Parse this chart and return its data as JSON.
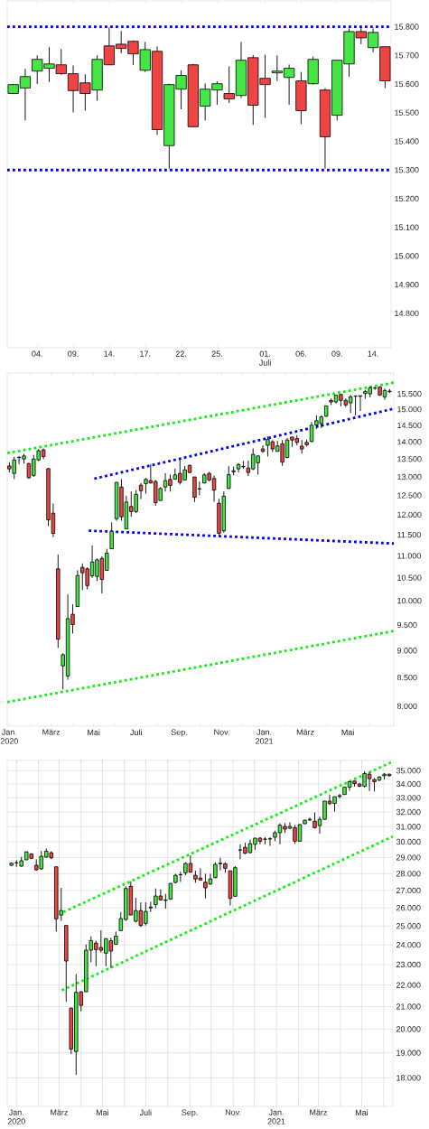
{
  "chart_data": [
    {
      "type": "candlestick",
      "categories": [
        null,
        null,
        "04.",
        null,
        null,
        "09.",
        null,
        null,
        "14.",
        null,
        null,
        "17.",
        null,
        null,
        "22.",
        null,
        null,
        "25.",
        null,
        null,
        null,
        "01. Juli",
        null,
        null,
        "06.",
        null,
        null,
        "09.",
        null,
        null,
        "14.",
        null
      ],
      "ohlc": [
        [
          15567,
          15600,
          15565,
          15598
        ],
        [
          15586,
          15653,
          15473,
          15626
        ],
        [
          15645,
          15700,
          15600,
          15686
        ],
        [
          15655,
          15728,
          15607,
          15670
        ],
        [
          15667,
          15722,
          15632,
          15636
        ],
        [
          15636,
          15665,
          15501,
          15577
        ],
        [
          15604,
          15634,
          15507,
          15567
        ],
        [
          15579,
          15700,
          15542,
          15686
        ],
        [
          15733,
          15797,
          15667,
          15667
        ],
        [
          15739,
          15785,
          15707,
          15724
        ],
        [
          15749,
          15752,
          15666,
          15705
        ],
        [
          15648,
          15747,
          15642,
          15720
        ],
        [
          15714,
          15731,
          15422,
          15441
        ],
        [
          15385,
          15601,
          15305,
          15598
        ],
        [
          15582,
          15648,
          15512,
          15630
        ],
        [
          15667,
          15670,
          15451,
          15451
        ],
        [
          15523,
          15602,
          15473,
          15582
        ],
        [
          15579,
          15609,
          15528,
          15601
        ],
        [
          15567,
          15662,
          15534,
          15548
        ],
        [
          15560,
          15747,
          15551,
          15683
        ],
        [
          15692,
          15701,
          15457,
          15526
        ],
        [
          15620,
          15702,
          15482,
          15598
        ],
        [
          15639,
          15700,
          15611,
          15645
        ],
        [
          15623,
          15668,
          15528,
          15655
        ],
        [
          15611,
          15642,
          15460,
          15507
        ],
        [
          15601,
          15696,
          15598,
          15686
        ],
        [
          15579,
          15586,
          15305,
          15416
        ],
        [
          15491,
          15683,
          15473,
          15683
        ],
        [
          15670,
          15794,
          15626,
          15783
        ],
        [
          15783,
          15799,
          15739,
          15761
        ],
        [
          15727,
          15794,
          15711,
          15780
        ],
        [
          15730,
          15730,
          15586,
          15611
        ]
      ],
      "colors": [
        "#44e544",
        "#44e544",
        "#44e544",
        "#44e544",
        "#ee4444",
        "#ee4444",
        "#ee4444",
        "#44e544",
        "#ee4444",
        "#ee4444",
        "#ee4444",
        "#44e544",
        "#ee4444",
        "#44e544",
        "#44e544",
        "#ee4444",
        "#44e544",
        "#44e544",
        "#ee4444",
        "#44e544",
        "#ee4444",
        "#ee4444",
        "#44e544",
        "#44e544",
        "#ee4444",
        "#44e544",
        "#ee4444",
        "#44e544",
        "#44e544",
        "#ee4444",
        "#44e544",
        "#ee4444"
      ],
      "ylim": [
        14680,
        15890
      ],
      "yticks": [
        {
          "value": 15800,
          "label": "15.800"
        },
        {
          "value": 15700,
          "label": "15.700"
        },
        {
          "value": 15600,
          "label": "15.600"
        },
        {
          "value": 15500,
          "label": "15.500"
        },
        {
          "value": 15400,
          "label": "15.400"
        },
        {
          "value": 15300,
          "label": "15.300"
        },
        {
          "value": 15200,
          "label": "15.200"
        },
        {
          "value": 15100,
          "label": "15.100"
        },
        {
          "value": 15000,
          "label": "15.000"
        },
        {
          "value": 14900,
          "label": "14.900"
        },
        {
          "value": 14800,
          "label": "14.800"
        }
      ],
      "ref_lines": [
        {
          "axis": "y",
          "value": 15800,
          "color": "#0000ee",
          "line_style": "dotted"
        },
        {
          "axis": "y",
          "value": 15300,
          "color": "#0000ee",
          "line_style": "dotted"
        }
      ]
    },
    {
      "type": "candlestick",
      "log": true,
      "x": [
        "2020-01-01",
        "2020-01-08",
        "2020-01-15",
        "2020-01-22",
        "2020-01-29",
        "2020-02-05",
        "2020-02-12",
        "2020-02-19",
        "2020-02-26",
        "2020-03-04",
        "2020-03-11",
        "2020-03-18",
        "2020-03-25",
        "2020-04-01",
        "2020-04-08",
        "2020-04-15",
        "2020-04-22",
        "2020-04-29",
        "2020-05-06",
        "2020-05-13",
        "2020-05-20",
        "2020-05-27",
        "2020-06-03",
        "2020-06-10",
        "2020-06-17",
        "2020-06-24",
        "2020-07-01",
        "2020-07-08",
        "2020-07-15",
        "2020-07-22",
        "2020-07-29",
        "2020-08-05",
        "2020-08-12",
        "2020-08-19",
        "2020-08-26",
        "2020-09-02",
        "2020-09-09",
        "2020-09-16",
        "2020-09-23",
        "2020-09-30",
        "2020-10-07",
        "2020-10-14",
        "2020-10-21",
        "2020-10-28",
        "2020-11-04",
        "2020-11-11",
        "2020-11-18",
        "2020-11-25",
        "2020-12-02",
        "2020-12-09",
        "2020-12-16",
        "2020-12-23",
        "2020-12-30",
        "2021-01-06",
        "2021-01-13",
        "2021-01-20",
        "2021-01-27",
        "2021-02-03",
        "2021-02-10",
        "2021-02-17",
        "2021-02-24",
        "2021-03-03",
        "2021-03-10",
        "2021-03-17",
        "2021-03-24",
        "2021-03-31",
        "2021-04-07",
        "2021-04-14",
        "2021-04-21",
        "2021-04-28",
        "2021-05-05",
        "2021-05-12",
        "2021-05-19",
        "2021-05-26",
        "2021-06-02",
        "2021-06-09",
        "2021-06-16",
        "2021-06-23",
        "2021-06-30"
      ],
      "ohlc": [
        [
          13303,
          13410,
          13122,
          13221
        ],
        [
          13096,
          13564,
          12939,
          13475
        ],
        [
          13540,
          13590,
          13352,
          13550
        ],
        [
          13502,
          13652,
          13369,
          13590
        ],
        [
          13369,
          13396,
          12957,
          12973
        ],
        [
          13039,
          13617,
          12998,
          13502
        ],
        [
          13475,
          13792,
          13440,
          13739
        ],
        [
          13766,
          13810,
          13502,
          13572
        ],
        [
          13229,
          13245,
          11717,
          11869
        ],
        [
          12039,
          12287,
          11441,
          11535
        ],
        [
          10700,
          11027,
          9050,
          9220
        ],
        [
          8713,
          8949,
          8290,
          8921
        ],
        [
          8529,
          10135,
          8460,
          9629
        ],
        [
          9719,
          9924,
          9329,
          9509
        ],
        [
          9879,
          10666,
          9870,
          10550
        ],
        [
          10734,
          10823,
          10231,
          10611
        ],
        [
          10700,
          10734,
          10244,
          10327
        ],
        [
          10543,
          11245,
          10495,
          10857
        ],
        [
          10529,
          10939,
          10427,
          10905
        ],
        [
          10939,
          10987,
          10154,
          10461
        ],
        [
          10666,
          11165,
          10660,
          11063
        ],
        [
          11165,
          11807,
          11160,
          11586
        ],
        [
          11900,
          12860,
          11846,
          12849
        ],
        [
          12725,
          12939,
          11846,
          11946
        ],
        [
          11644,
          12489,
          11640,
          12326
        ],
        [
          12210,
          12609,
          11946,
          12078
        ],
        [
          12078,
          12642,
          12039,
          12528
        ],
        [
          12774,
          12832,
          12403,
          12626
        ],
        [
          12816,
          12973,
          12543,
          12931
        ],
        [
          12898,
          13352,
          12820,
          12832
        ],
        [
          12874,
          12915,
          12233,
          12310
        ],
        [
          12365,
          12725,
          12360,
          12683
        ],
        [
          12725,
          13104,
          12601,
          12898
        ],
        [
          12931,
          13063,
          12601,
          12766
        ],
        [
          12939,
          13229,
          12915,
          13055
        ],
        [
          13096,
          13484,
          12791,
          12849
        ],
        [
          12915,
          13303,
          12910,
          13196
        ],
        [
          13319,
          13344,
          13104,
          13121
        ],
        [
          12998,
          13000,
          12326,
          12450
        ],
        [
          12670,
          12874,
          12504,
          12680
        ],
        [
          12832,
          13104,
          12830,
          13055
        ],
        [
          13096,
          13138,
          12874,
          12915
        ],
        [
          12956,
          13039,
          12334,
          12642
        ],
        [
          12295,
          12411,
          11477,
          11535
        ],
        [
          11597,
          12605,
          11550,
          12481
        ],
        [
          12683,
          13303,
          12680,
          13063
        ],
        [
          13140,
          13286,
          13039,
          13170
        ],
        [
          13221,
          13386,
          13121,
          13344
        ],
        [
          13280,
          13452,
          13221,
          13290
        ],
        [
          13245,
          13452,
          13022,
          13121
        ],
        [
          13221,
          13810,
          13188,
          13634
        ],
        [
          13394,
          13600,
          13063,
          13590
        ],
        [
          13792,
          13899,
          13677,
          13721
        ],
        [
          13899,
          14161,
          13572,
          14073
        ],
        [
          14003,
          14055,
          13704,
          13792
        ],
        [
          13721,
          14029,
          13715,
          13882
        ],
        [
          13943,
          14055,
          13307,
          13412
        ],
        [
          13546,
          14117,
          13520,
          14055
        ],
        [
          14143,
          14150,
          13855,
          14055
        ],
        [
          14099,
          14205,
          13899,
          13985
        ],
        [
          13873,
          14055,
          13660,
          13792
        ],
        [
          13985,
          14073,
          13855,
          13917
        ],
        [
          14011,
          14602,
          13985,
          14501
        ],
        [
          14510,
          14811,
          14390,
          14642
        ],
        [
          14548,
          14811,
          14418,
          14764
        ],
        [
          14783,
          15120,
          14764,
          15112
        ],
        [
          15285,
          15353,
          15140,
          15236
        ],
        [
          15236,
          15470,
          15187,
          15461
        ],
        [
          15480,
          15500,
          15093,
          15285
        ],
        [
          15285,
          15353,
          15074,
          15140
        ],
        [
          15206,
          15461,
          14883,
          15402
        ],
        [
          15420,
          15440,
          14811,
          15430
        ],
        [
          15420,
          15440,
          14950,
          15437
        ],
        [
          15510,
          15629,
          15333,
          15580
        ],
        [
          15500,
          15748,
          15383,
          15698
        ],
        [
          15690,
          15748,
          15629,
          15693
        ],
        [
          15727,
          15748,
          15431,
          15461
        ],
        [
          15402,
          15679,
          15304,
          15609
        ],
        [
          15570,
          15658,
          15530,
          15590
        ]
      ],
      "colors": [
        "#ee4444",
        "#44e544",
        "#44e544",
        "#44e544",
        "#ee4444",
        "#44e544",
        "#44e544",
        "#ee4444",
        "#ee4444",
        "#ee4444",
        "#ee4444",
        "#44e544",
        "#44e544",
        "#ee4444",
        "#44e544",
        "#ee4444",
        "#ee4444",
        "#44e544",
        "#44e544",
        "#ee4444",
        "#44e544",
        "#44e544",
        "#44e544",
        "#ee4444",
        "#44e544",
        "#ee4444",
        "#44e544",
        "#ee4444",
        "#44e544",
        "#ee4444",
        "#ee4444",
        "#44e544",
        "#44e544",
        "#ee4444",
        "#44e544",
        "#ee4444",
        "#44e544",
        "#ee4444",
        "#ee4444",
        "#44e544",
        "#44e544",
        "#ee4444",
        "#ee4444",
        "#ee4444",
        "#44e544",
        "#44e544",
        "#44e544",
        "#44e544",
        "#44e544",
        "#ee4444",
        "#44e544",
        "#44e544",
        "#ee4444",
        "#44e544",
        "#ee4444",
        "#44e544",
        "#ee4444",
        "#44e544",
        "#ee4444",
        "#ee4444",
        "#ee4444",
        "#ee4444",
        "#44e544",
        "#44e544",
        "#44e544",
        "#44e544",
        "#ee4444",
        "#44e544",
        "#ee4444",
        "#ee4444",
        "#44e544",
        "#44e544",
        "#44e544",
        "#44e544",
        "#44e544",
        "#44e544",
        "#ee4444",
        "#44e544",
        "#44e544"
      ],
      "xlim": [
        "2019-12-29",
        "2021-07-06"
      ],
      "xticks": [
        {
          "value": "2020-01-01",
          "label": "Jan. 2020"
        },
        {
          "value": "2020-02-01",
          "label": null
        },
        {
          "value": "2020-03-01",
          "label": "März"
        },
        {
          "value": "2020-04-01",
          "label": null
        },
        {
          "value": "2020-05-01",
          "label": "Mai"
        },
        {
          "value": "2020-06-01",
          "label": null
        },
        {
          "value": "2020-07-01",
          "label": "Juli"
        },
        {
          "value": "2020-08-01",
          "label": null
        },
        {
          "value": "2020-09-01",
          "label": "Sep."
        },
        {
          "value": "2020-10-01",
          "label": null
        },
        {
          "value": "2020-11-01",
          "label": "Nov."
        },
        {
          "value": "2020-12-01",
          "label": null
        },
        {
          "value": "2021-01-01",
          "label": "Jan. 2021"
        },
        {
          "value": "2021-02-01",
          "label": null
        },
        {
          "value": "2021-03-01",
          "label": "März"
        },
        {
          "value": "2021-04-01",
          "label": null
        },
        {
          "value": "2021-05-01",
          "label": "Mai"
        },
        {
          "value": "2021-06-01",
          "label": null
        },
        {
          "value": "2021-07-01",
          "label": null
        }
      ],
      "ylim": [
        7670,
        16200
      ],
      "yticks": [
        {
          "value": 15500,
          "label": "15.500"
        },
        {
          "value": 15000,
          "label": "15.000"
        },
        {
          "value": 14500,
          "label": "14.500"
        },
        {
          "value": 14000,
          "label": "14.000"
        },
        {
          "value": 13500,
          "label": "13.500"
        },
        {
          "value": 13000,
          "label": "13.000"
        },
        {
          "value": 12500,
          "label": "12.500"
        },
        {
          "value": 12000,
          "label": "12.000"
        },
        {
          "value": 11500,
          "label": "11.500"
        },
        {
          "value": 11000,
          "label": "11.000"
        },
        {
          "value": 10500,
          "label": "10.500"
        },
        {
          "value": 10000,
          "label": "10.000"
        },
        {
          "value": 9500,
          "label": "9.500"
        },
        {
          "value": 9000,
          "label": "9.000"
        },
        {
          "value": 8500,
          "label": "8.500"
        },
        {
          "value": 8000,
          "label": "8.000"
        }
      ],
      "series": [
        {
          "type": "line",
          "x": [
            "2019-12-29",
            "2021-07-06"
          ],
          "values": [
            13670,
            15870
          ],
          "color": "#11ee11",
          "line_style": "dotted"
        },
        {
          "type": "line",
          "x": [
            "2020-05-02",
            "2021-07-06"
          ],
          "values": [
            12950,
            15020
          ],
          "color": "#0000ee",
          "line_style": "dotted"
        },
        {
          "type": "line",
          "x": [
            "2020-04-24",
            "2021-07-06"
          ],
          "values": [
            11600,
            11290
          ],
          "color": "#0000ee",
          "line_style": "dotted"
        },
        {
          "type": "line",
          "x": [
            "2019-12-29",
            "2021-07-06"
          ],
          "values": [
            8070,
            9380
          ],
          "color": "#11ee11",
          "line_style": "dotted"
        }
      ]
    },
    {
      "type": "candlestick",
      "log": true,
      "grid": true,
      "x": [
        "2019-12-25",
        "2020-01-01",
        "2020-01-08",
        "2020-01-15",
        "2020-01-22",
        "2020-01-29",
        "2020-02-05",
        "2020-02-12",
        "2020-02-19",
        "2020-02-26",
        "2020-03-04",
        "2020-03-11",
        "2020-03-18",
        "2020-03-25",
        "2020-04-01",
        "2020-04-08",
        "2020-04-15",
        "2020-04-22",
        "2020-04-29",
        "2020-05-06",
        "2020-05-13",
        "2020-05-20",
        "2020-05-27",
        "2020-06-03",
        "2020-06-10",
        "2020-06-17",
        "2020-06-24",
        "2020-07-01",
        "2020-07-08",
        "2020-07-15",
        "2020-07-22",
        "2020-07-29",
        "2020-08-05",
        "2020-08-12",
        "2020-08-19",
        "2020-08-26",
        "2020-09-02",
        "2020-09-09",
        "2020-09-16",
        "2020-09-23",
        "2020-09-30",
        "2020-10-07",
        "2020-10-14",
        "2020-10-21",
        "2020-10-28",
        "2020-11-04",
        "2020-11-11",
        "2020-11-18",
        "2020-11-25",
        "2020-12-02",
        "2020-12-09",
        "2020-12-16",
        "2020-12-23",
        "2020-12-30",
        "2021-01-06",
        "2021-01-13",
        "2021-01-20",
        "2021-01-27",
        "2021-02-03",
        "2021-02-10",
        "2021-02-17",
        "2021-02-24",
        "2021-03-03",
        "2021-03-10",
        "2021-03-17",
        "2021-03-24",
        "2021-03-31",
        "2021-04-07",
        "2021-04-14",
        "2021-04-21",
        "2021-04-28",
        "2021-05-05",
        "2021-05-12",
        "2021-05-19",
        "2021-05-26",
        "2021-06-02",
        "2021-06-09"
      ],
      "ohlc": [
        [
          28514,
          28703,
          28460,
          28647
        ],
        [
          28660,
          28835,
          28422,
          28670
        ],
        [
          28460,
          29040,
          28422,
          28797
        ],
        [
          28853,
          29370,
          28840,
          29358
        ],
        [
          29227,
          29264,
          28928,
          28947
        ],
        [
          28516,
          28891,
          28180,
          28236
        ],
        [
          28292,
          29414,
          28236,
          29078
        ],
        [
          29021,
          29582,
          28984,
          29396
        ],
        [
          29302,
          29396,
          28891,
          28984
        ],
        [
          28423,
          28430,
          24702,
          25391
        ],
        [
          25604,
          27153,
          25276,
          25850
        ],
        [
          25030,
          25040,
          21217,
          23177
        ],
        [
          20933,
          20950,
          18945,
          19159
        ],
        [
          19058,
          22532,
          18117,
          21656
        ],
        [
          21684,
          21700,
          20785,
          21055
        ],
        [
          21684,
          24019,
          21680,
          23728
        ],
        [
          23728,
          24450,
          23116,
          24218
        ],
        [
          24095,
          24218,
          22914,
          23759
        ],
        [
          23866,
          24766,
          23605,
          23728
        ],
        [
          23575,
          24340,
          22914,
          24327
        ],
        [
          24218,
          24376,
          22837,
          23682
        ],
        [
          24030,
          24702,
          24020,
          24458
        ],
        [
          24751,
          25768,
          24740,
          25407
        ],
        [
          25358,
          27241,
          25276,
          27118
        ],
        [
          27241,
          27546,
          25600,
          25604
        ],
        [
          25260,
          26575,
          25194,
          25850
        ],
        [
          25850,
          26313,
          24948,
          25030
        ],
        [
          25145,
          26313,
          25030,
          25801
        ],
        [
          26000,
          26348,
          25768,
          26050
        ],
        [
          26186,
          27118,
          25983,
          26680
        ],
        [
          26680,
          27066,
          26418,
          26453
        ],
        [
          26453,
          26803,
          25966,
          26428
        ],
        [
          26505,
          27430,
          26453,
          27418
        ],
        [
          27471,
          27993,
          27418,
          27902
        ],
        [
          27935,
          28124,
          27506,
          27945
        ],
        [
          28050,
          28703,
          27902,
          28628
        ],
        [
          28628,
          29134,
          28050,
          28105
        ],
        [
          27902,
          28180,
          27453,
          27678
        ],
        [
          27734,
          28329,
          27585,
          27622
        ],
        [
          27488,
          27993,
          26540,
          27153
        ],
        [
          27383,
          27993,
          27331,
          27678
        ],
        [
          27769,
          28703,
          27716,
          28572
        ],
        [
          28640,
          28984,
          28199,
          28606
        ],
        [
          28610,
          28703,
          28050,
          28329
        ],
        [
          28180,
          28190,
          26138,
          26540
        ],
        [
          26663,
          28460,
          26650,
          28367
        ],
        [
          29470,
          29843,
          28891,
          29480
        ],
        [
          29645,
          29942,
          29208,
          29265
        ],
        [
          29302,
          30141,
          29265,
          29883
        ],
        [
          29843,
          30250,
          29489,
          30241
        ],
        [
          30241,
          30300,
          29843,
          30042
        ],
        [
          30160,
          30300,
          29843,
          30180
        ],
        [
          30180,
          30300,
          29744,
          30199
        ],
        [
          30300,
          30738,
          30042,
          30599
        ],
        [
          30599,
          31235,
          29843,
          31096
        ],
        [
          31016,
          31235,
          30579,
          30837
        ],
        [
          30897,
          31295,
          30837,
          31016
        ],
        [
          30936,
          31096,
          29883,
          30042
        ],
        [
          30042,
          31175,
          30030,
          31136
        ],
        [
          31195,
          31474,
          31180,
          31434
        ],
        [
          31450,
          31633,
          31394,
          31494
        ],
        [
          31374,
          31972,
          30877,
          30936
        ],
        [
          31076,
          31673,
          30539,
          31494
        ],
        [
          31494,
          32780,
          31480,
          32765
        ],
        [
          32765,
          33231,
          32490,
          32596
        ],
        [
          32596,
          33090,
          32024,
          33083
        ],
        [
          33100,
          33273,
          32955,
          33153
        ],
        [
          33231,
          33780,
          33220,
          33768
        ],
        [
          33768,
          34216,
          33507,
          34171
        ],
        [
          34216,
          34230,
          33813,
          34037
        ],
        [
          33992,
          34104,
          33768,
          33835
        ],
        [
          33835,
          34955,
          33723,
          34776
        ],
        [
          34731,
          34888,
          33486,
          34395
        ],
        [
          34328,
          34440,
          33443,
          34171
        ],
        [
          34283,
          34597,
          34216,
          34507
        ],
        [
          34619,
          34821,
          34328,
          34731
        ],
        [
          34731,
          34776,
          34552,
          34619
        ]
      ],
      "colors": [
        "#44e544",
        "#44e544",
        "#44e544",
        "#44e544",
        "#ee4444",
        "#ee4444",
        "#44e544",
        "#44e544",
        "#ee4444",
        "#ee4444",
        "#44e544",
        "#ee4444",
        "#ee4444",
        "#44e544",
        "#ee4444",
        "#44e544",
        "#44e544",
        "#ee4444",
        "#ee4444",
        "#44e544",
        "#ee4444",
        "#44e544",
        "#44e544",
        "#44e544",
        "#ee4444",
        "#44e544",
        "#ee4444",
        "#44e544",
        "#44e544",
        "#44e544",
        "#ee4444",
        "#ee4444",
        "#44e544",
        "#44e544",
        "#44e544",
        "#44e544",
        "#ee4444",
        "#ee4444",
        "#ee4444",
        "#ee4444",
        "#44e544",
        "#44e544",
        "#ee4444",
        "#ee4444",
        "#ee4444",
        "#44e544",
        "#44e544",
        "#ee4444",
        "#44e544",
        "#44e544",
        "#ee4444",
        "#44e544",
        "#44e544",
        "#44e544",
        "#44e544",
        "#ee4444",
        "#44e544",
        "#ee4444",
        "#44e544",
        "#44e544",
        "#44e544",
        "#ee4444",
        "#44e544",
        "#44e544",
        "#ee4444",
        "#44e544",
        "#44e544",
        "#44e544",
        "#44e544",
        "#ee4444",
        "#ee4444",
        "#44e544",
        "#ee4444",
        "#ee4444",
        "#44e544",
        "#44e544",
        "#ee4444"
      ],
      "xlim": [
        "2019-12-19",
        "2021-06-14"
      ],
      "xticks": [
        {
          "value": "2020-01-01",
          "label": "Jan. 2020"
        },
        {
          "value": "2020-02-01",
          "label": null
        },
        {
          "value": "2020-03-01",
          "label": "März"
        },
        {
          "value": "2020-04-01",
          "label": null
        },
        {
          "value": "2020-05-01",
          "label": "Mai"
        },
        {
          "value": "2020-06-01",
          "label": null
        },
        {
          "value": "2020-07-01",
          "label": "Juli"
        },
        {
          "value": "2020-08-01",
          "label": null
        },
        {
          "value": "2020-09-01",
          "label": "Sep."
        },
        {
          "value": "2020-10-01",
          "label": null
        },
        {
          "value": "2020-11-01",
          "label": "Nov."
        },
        {
          "value": "2020-12-01",
          "label": null
        },
        {
          "value": "2021-01-01",
          "label": "Jan. 2021"
        },
        {
          "value": "2021-02-01",
          "label": null
        },
        {
          "value": "2021-03-01",
          "label": "März"
        },
        {
          "value": "2021-04-01",
          "label": null
        },
        {
          "value": "2021-05-01",
          "label": "Mai"
        },
        {
          "value": "2021-06-01",
          "label": null
        }
      ],
      "ylim": [
        16920,
        35780
      ],
      "yticks": [
        {
          "value": 35000,
          "label": "35.000"
        },
        {
          "value": 34000,
          "label": "34.000"
        },
        {
          "value": 33000,
          "label": "33.000"
        },
        {
          "value": 32000,
          "label": "32.000"
        },
        {
          "value": 31000,
          "label": "31.000"
        },
        {
          "value": 30000,
          "label": "30.000"
        },
        {
          "value": 29000,
          "label": "29.000"
        },
        {
          "value": 28000,
          "label": "28.000"
        },
        {
          "value": 27000,
          "label": "27.000"
        },
        {
          "value": 26000,
          "label": "26.000"
        },
        {
          "value": 25000,
          "label": "25.000"
        },
        {
          "value": 24000,
          "label": "24.000"
        },
        {
          "value": 23000,
          "label": "23.000"
        },
        {
          "value": 22000,
          "label": "22.000"
        },
        {
          "value": 21000,
          "label": "21.000"
        },
        {
          "value": 20000,
          "label": "20.000"
        },
        {
          "value": 19000,
          "label": "19.000"
        },
        {
          "value": 18000,
          "label": "18.000"
        }
      ],
      "series": [
        {
          "type": "line",
          "x": [
            "2020-03-07",
            "2021-06-14"
          ],
          "values": [
            25770,
            35690
          ],
          "color": "#11ee11",
          "line_style": "dotted"
        },
        {
          "type": "line",
          "x": [
            "2020-03-05",
            "2021-06-14"
          ],
          "values": [
            21750,
            30350
          ],
          "color": "#11ee11",
          "line_style": "dotted"
        }
      ]
    }
  ]
}
